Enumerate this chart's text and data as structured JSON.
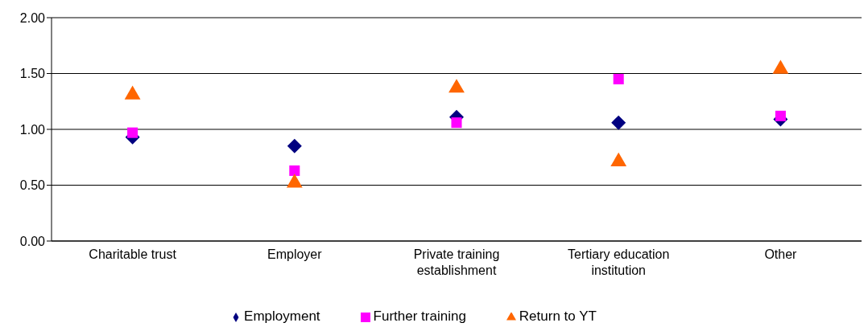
{
  "chart_data": {
    "type": "scatter",
    "categories": [
      "Charitable trust",
      "Employer",
      "Private training establishment",
      "Tertiary education institution",
      "Other"
    ],
    "series": [
      {
        "name": "Employment",
        "color": "#000080",
        "marker": "diamond",
        "values": [
          0.93,
          0.85,
          1.11,
          1.06,
          1.09
        ]
      },
      {
        "name": "Further training",
        "color": "#ff00ff",
        "marker": "square",
        "values": [
          0.97,
          0.63,
          1.06,
          1.45,
          1.12
        ]
      },
      {
        "name": "Return to YT",
        "color": "#ff6600",
        "marker": "triangle",
        "values": [
          1.31,
          0.52,
          1.37,
          0.71,
          1.54
        ]
      }
    ],
    "ylim": [
      0,
      2
    ],
    "yticks": [
      {
        "value": 0,
        "label": "0.00"
      },
      {
        "value": 0.5,
        "label": "0.50"
      },
      {
        "value": 1,
        "label": "1.00"
      },
      {
        "value": 1.5,
        "label": "1.50"
      },
      {
        "value": 2,
        "label": "2.00"
      }
    ],
    "grid": "y",
    "legend": "bottom"
  }
}
